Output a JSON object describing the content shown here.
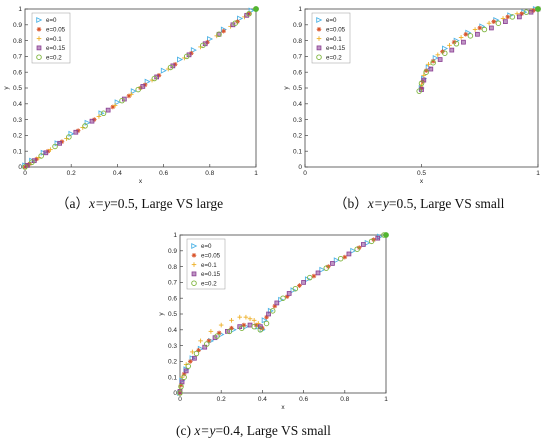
{
  "captions": [
    {
      "prefix": "（a）",
      "var_expr": "x=y",
      "rest": "=0.5, Large VS large"
    },
    {
      "prefix": "（b）",
      "var_expr": "x=y",
      "rest": "=0.5, Large VS small"
    },
    {
      "prefix": "(c)  ",
      "var_expr": "x=y",
      "rest": "=0.4, Large VS small"
    }
  ],
  "colors": {
    "e0": "#4db3e6",
    "e005": "#d9542b",
    "e01": "#eeb028",
    "e015": "#8a3f93",
    "e02": "#7fb53e",
    "endpoint": "#53b530"
  },
  "chart_data": [
    {
      "type": "scatter",
      "xlabel": "x",
      "ylabel": "y",
      "xlim": [
        0,
        1
      ],
      "ylim": [
        0,
        1
      ],
      "xticks": [
        "0",
        "0.2",
        "0.4",
        "0.6",
        "0.8",
        "1"
      ],
      "yticks": [
        "0",
        "0.1",
        "0.2",
        "0.3",
        "0.4",
        "0.5",
        "0.6",
        "0.7",
        "0.8",
        "0.9",
        "1"
      ],
      "legend": "top-left",
      "grid": false,
      "series": [
        {
          "name": "e=0",
          "marker": "triangle",
          "color_key": "e0",
          "x": [
            0.0,
            0.03,
            0.08,
            0.14,
            0.2,
            0.27,
            0.33,
            0.4,
            0.47,
            0.53,
            0.6,
            0.67,
            0.73,
            0.8,
            0.86,
            0.93,
            0.98
          ],
          "y": [
            0.01,
            0.04,
            0.09,
            0.15,
            0.21,
            0.28,
            0.34,
            0.41,
            0.48,
            0.54,
            0.61,
            0.68,
            0.74,
            0.81,
            0.87,
            0.94,
            0.99
          ]
        },
        {
          "name": "e=0.05",
          "marker": "star",
          "color_key": "e005",
          "x": [
            0.0,
            0.01,
            0.02,
            0.05,
            0.1,
            0.16,
            0.23,
            0.3,
            0.38,
            0.45,
            0.5,
            0.52,
            0.58,
            0.65,
            0.72,
            0.79,
            0.86,
            0.92,
            0.97,
            1.0
          ],
          "y": [
            0.0,
            0.01,
            0.02,
            0.05,
            0.1,
            0.16,
            0.23,
            0.3,
            0.38,
            0.45,
            0.5,
            0.52,
            0.58,
            0.65,
            0.72,
            0.79,
            0.86,
            0.92,
            0.97,
            1.0
          ]
        },
        {
          "name": "e=0.1",
          "marker": "plus",
          "color_key": "e01",
          "x": [
            0.02,
            0.06,
            0.11,
            0.18,
            0.25,
            0.32,
            0.39,
            0.46,
            0.5,
            0.55,
            0.62,
            0.69,
            0.76,
            0.83,
            0.89,
            0.95
          ],
          "y": [
            0.02,
            0.06,
            0.11,
            0.18,
            0.25,
            0.32,
            0.39,
            0.46,
            0.5,
            0.55,
            0.62,
            0.69,
            0.76,
            0.83,
            0.89,
            0.95
          ]
        },
        {
          "name": "e=0.15",
          "marker": "square",
          "color_key": "e015",
          "x": [
            0.01,
            0.04,
            0.09,
            0.15,
            0.22,
            0.29,
            0.36,
            0.43,
            0.51,
            0.57,
            0.64,
            0.71,
            0.78,
            0.84,
            0.9,
            0.96
          ],
          "y": [
            0.01,
            0.04,
            0.09,
            0.15,
            0.22,
            0.29,
            0.36,
            0.43,
            0.51,
            0.57,
            0.64,
            0.71,
            0.78,
            0.84,
            0.9,
            0.96
          ]
        },
        {
          "name": "e=0.2",
          "marker": "circle",
          "color_key": "e02",
          "x": [
            0.0,
            0.03,
            0.07,
            0.13,
            0.19,
            0.26,
            0.34,
            0.42,
            0.49,
            0.56,
            0.63,
            0.7,
            0.77,
            0.84,
            0.91,
            0.97,
            1.0
          ],
          "y": [
            0.0,
            0.03,
            0.07,
            0.13,
            0.19,
            0.26,
            0.34,
            0.42,
            0.49,
            0.56,
            0.63,
            0.7,
            0.77,
            0.84,
            0.91,
            0.97,
            1.0
          ]
        }
      ]
    },
    {
      "type": "scatter",
      "xlabel": "x",
      "ylabel": "y",
      "xlim": [
        0,
        1
      ],
      "ylim": [
        0,
        1
      ],
      "xticks": [
        "0",
        "0.5",
        "1"
      ],
      "yticks": [
        "0",
        "0.1",
        "0.2",
        "0.3",
        "0.4",
        "0.5",
        "0.6",
        "0.7",
        "0.8",
        "0.9",
        "1"
      ],
      "legend": "top-left",
      "grid": false,
      "series": [
        {
          "name": "e=0",
          "marker": "triangle",
          "color_key": "e0",
          "x": [
            0.5,
            0.51,
            0.53,
            0.56,
            0.6,
            0.65,
            0.7,
            0.76,
            0.82,
            0.88,
            0.94,
            0.99
          ],
          "y": [
            0.5,
            0.56,
            0.63,
            0.69,
            0.75,
            0.8,
            0.85,
            0.89,
            0.93,
            0.96,
            0.98,
            1.0
          ]
        },
        {
          "name": "e=0.05",
          "marker": "star",
          "color_key": "e005",
          "x": [
            0.5,
            0.505,
            0.52,
            0.55,
            0.59,
            0.64,
            0.69,
            0.75,
            0.81,
            0.87,
            0.93,
            0.98,
            1.0
          ],
          "y": [
            0.5,
            0.54,
            0.61,
            0.67,
            0.73,
            0.79,
            0.84,
            0.88,
            0.92,
            0.95,
            0.97,
            0.99,
            1.0
          ]
        },
        {
          "name": "e=0.1",
          "marker": "plus",
          "color_key": "e01",
          "x": [
            0.5,
            0.51,
            0.53,
            0.57,
            0.62,
            0.67,
            0.73,
            0.79,
            0.85,
            0.91,
            0.97
          ],
          "y": [
            0.52,
            0.58,
            0.65,
            0.71,
            0.77,
            0.82,
            0.87,
            0.91,
            0.94,
            0.97,
            0.99
          ]
        },
        {
          "name": "e=0.15",
          "marker": "square",
          "color_key": "e015",
          "x": [
            0.5,
            0.51,
            0.54,
            0.58,
            0.63,
            0.68,
            0.74,
            0.8,
            0.86,
            0.92,
            0.97,
            1.0
          ],
          "y": [
            0.49,
            0.55,
            0.62,
            0.68,
            0.74,
            0.79,
            0.84,
            0.88,
            0.92,
            0.95,
            0.98,
            1.0
          ]
        },
        {
          "name": "e=0.2",
          "marker": "circle",
          "color_key": "e02",
          "x": [
            0.49,
            0.5,
            0.52,
            0.55,
            0.6,
            0.65,
            0.71,
            0.77,
            0.83,
            0.89,
            0.95,
            1.0
          ],
          "y": [
            0.48,
            0.53,
            0.6,
            0.66,
            0.72,
            0.78,
            0.83,
            0.87,
            0.91,
            0.95,
            0.98,
            1.0
          ]
        }
      ]
    },
    {
      "type": "scatter",
      "xlabel": "x",
      "ylabel": "y",
      "xlim": [
        0,
        1
      ],
      "ylim": [
        0,
        1
      ],
      "xticks": [
        "0",
        "0.2",
        "0.4",
        "0.6",
        "0.8",
        "1"
      ],
      "yticks": [
        "0",
        "0.1",
        "0.2",
        "0.3",
        "0.4",
        "0.5",
        "0.6",
        "0.7",
        "0.8",
        "0.9",
        "1"
      ],
      "legend": "top-left",
      "grid": false,
      "series": [
        {
          "name": "e=0",
          "marker": "triangle",
          "color_key": "e0",
          "x": [
            0.0,
            0.01,
            0.03,
            0.06,
            0.1,
            0.15,
            0.2,
            0.26,
            0.32,
            0.38,
            0.4,
            0.41,
            0.44,
            0.49,
            0.55,
            0.62,
            0.69,
            0.76,
            0.84,
            0.91,
            0.97
          ],
          "y": [
            0.0,
            0.08,
            0.15,
            0.22,
            0.28,
            0.33,
            0.37,
            0.4,
            0.42,
            0.42,
            0.4,
            0.46,
            0.52,
            0.59,
            0.65,
            0.72,
            0.78,
            0.84,
            0.9,
            0.95,
            0.99
          ]
        },
        {
          "name": "e=0.05",
          "marker": "star",
          "color_key": "e005",
          "x": [
            0.0,
            0.005,
            0.02,
            0.05,
            0.09,
            0.14,
            0.19,
            0.25,
            0.31,
            0.37,
            0.4,
            0.42,
            0.46,
            0.52,
            0.58,
            0.65,
            0.72,
            0.8,
            0.87,
            0.94,
            1.0
          ],
          "y": [
            0.0,
            0.05,
            0.12,
            0.2,
            0.27,
            0.33,
            0.38,
            0.41,
            0.43,
            0.43,
            0.41,
            0.48,
            0.55,
            0.61,
            0.68,
            0.74,
            0.8,
            0.86,
            0.92,
            0.97,
            1.0
          ]
        },
        {
          "name": "e=0.1",
          "marker": "plus",
          "color_key": "e01",
          "x": [
            0.0,
            0.01,
            0.03,
            0.06,
            0.1,
            0.15,
            0.2,
            0.25,
            0.29,
            0.32,
            0.34,
            0.36,
            0.38,
            0.39
          ],
          "y": [
            0.02,
            0.1,
            0.18,
            0.26,
            0.33,
            0.39,
            0.43,
            0.46,
            0.48,
            0.48,
            0.47,
            0.46,
            0.44,
            0.41
          ]
        },
        {
          "name": "e=0.15",
          "marker": "square",
          "color_key": "e015",
          "x": [
            0.0,
            0.01,
            0.03,
            0.07,
            0.12,
            0.17,
            0.23,
            0.29,
            0.34,
            0.39,
            0.43,
            0.47,
            0.53,
            0.6,
            0.67,
            0.74,
            0.82,
            0.89,
            0.96
          ],
          "y": [
            0.01,
            0.07,
            0.14,
            0.22,
            0.29,
            0.35,
            0.39,
            0.42,
            0.43,
            0.42,
            0.5,
            0.57,
            0.63,
            0.7,
            0.76,
            0.82,
            0.88,
            0.94,
            0.98
          ]
        },
        {
          "name": "e=0.2",
          "marker": "circle",
          "color_key": "e02",
          "x": [
            0.0,
            0.005,
            0.02,
            0.04,
            0.08,
            0.13,
            0.18,
            0.24,
            0.3,
            0.36,
            0.39,
            0.42,
            0.45,
            0.5,
            0.56,
            0.63,
            0.71,
            0.78,
            0.86,
            0.93,
            0.99
          ],
          "y": [
            0.0,
            0.04,
            0.1,
            0.17,
            0.25,
            0.31,
            0.36,
            0.39,
            0.41,
            0.42,
            0.4,
            0.44,
            0.52,
            0.6,
            0.66,
            0.73,
            0.79,
            0.85,
            0.91,
            0.96,
            1.0
          ]
        }
      ]
    }
  ]
}
